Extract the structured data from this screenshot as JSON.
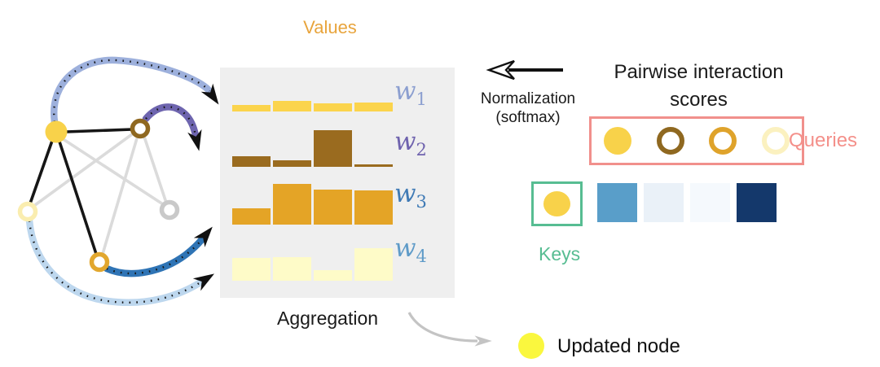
{
  "colors": {
    "panel_bg": "#EFEFEF",
    "node_yellow": "#F8D24A",
    "node_brown": "#8F6820",
    "node_orange": "#E2A72E",
    "node_pale": "#FAEDAF",
    "node_gray": "#C9C9C9",
    "edge_active": "#161616",
    "edge_inactive": "#DBDBDB",
    "agg_arrow": "#C4C4C4"
  },
  "graph": {
    "nodes": [
      {
        "id": "center-node",
        "style": "filled",
        "color": "#F8D24A"
      },
      {
        "id": "brown-node",
        "style": "ring",
        "color": "#8F6820"
      },
      {
        "id": "pale-node",
        "style": "ring",
        "color": "#FAEDAF"
      },
      {
        "id": "gray-node",
        "style": "ring",
        "color": "#C9C9C9"
      },
      {
        "id": "orange-node",
        "style": "ring",
        "color": "#E2A72E"
      }
    ]
  },
  "arrows": [
    {
      "name": "to-w1",
      "color": "#9DB0DC"
    },
    {
      "name": "to-w2",
      "color": "#6E65AF"
    },
    {
      "name": "to-w3",
      "color": "#2F74B5"
    },
    {
      "name": "to-w4",
      "color": "#BDD7EE"
    }
  ],
  "values_panel": {
    "title": "Values",
    "title_color": "#E8A43C",
    "rows": [
      {
        "label": "w",
        "sub": "1",
        "label_color": "#8C9FD0",
        "bar_color": "#FBD44C",
        "bars": [
          8,
          13,
          10,
          11
        ]
      },
      {
        "label": "w",
        "sub": "2",
        "label_color": "#6F63AE",
        "bar_color": "#9A6B1F",
        "bars": [
          13,
          8,
          45,
          3
        ]
      },
      {
        "label": "w",
        "sub": "3",
        "label_color": "#3F7AB5",
        "bar_color": "#E4A426",
        "bars": [
          20,
          50,
          43,
          42
        ]
      },
      {
        "label": "w",
        "sub": "4",
        "label_color": "#5F9BC8",
        "bar_color": "#FEFBC8",
        "bars": [
          28,
          29,
          13,
          40
        ]
      }
    ]
  },
  "aggregation": {
    "label": "Aggregation"
  },
  "normalization": {
    "line1": "Normalization",
    "line2": "(softmax)"
  },
  "pairwise": {
    "line1": "Pairwise interaction",
    "line2": "scores"
  },
  "queries": {
    "label": "Queries",
    "color": "#F4908A",
    "box_color": "#F1908C",
    "circles": [
      {
        "type": "filled",
        "color": "#F8D24A"
      },
      {
        "type": "ring",
        "color": "#8F6820"
      },
      {
        "type": "ring",
        "color": "#DFA32B"
      },
      {
        "type": "ring",
        "color": "#FBF1C0"
      }
    ]
  },
  "keys": {
    "label": "Keys",
    "color": "#57BD92",
    "box_color": "#57BD92",
    "circle_color": "#F8D24A"
  },
  "scores_row": {
    "squares": [
      "#599EC9",
      "#EAF1F8",
      "#F5F9FD",
      "#14386B"
    ]
  },
  "updated": {
    "label": "Updated node",
    "color": "#FAF73E"
  }
}
